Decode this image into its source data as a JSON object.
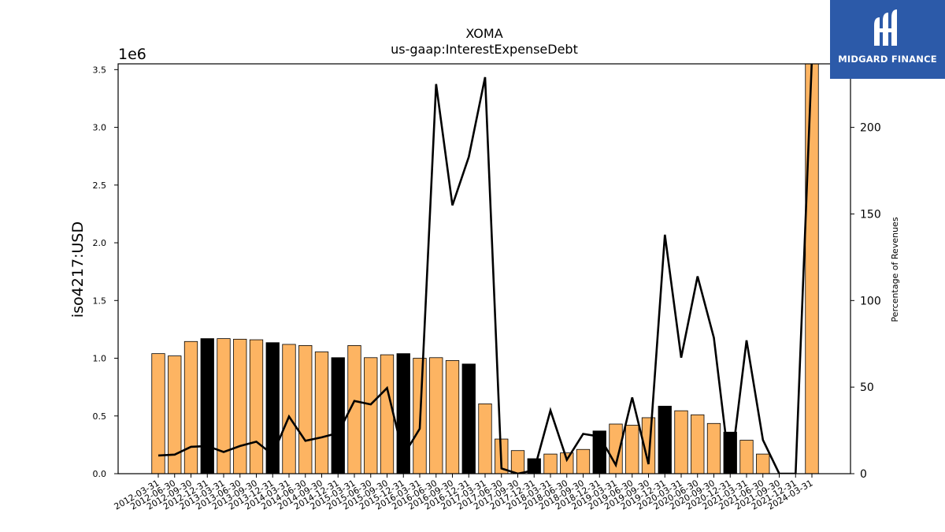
{
  "chart_data": {
    "type": "bar",
    "title": "XOMA",
    "subtitle": "us-gaap:InterestExpenseDebt",
    "ylabel": "iso4217:USD",
    "y2label": "Percentage of Revenues",
    "yscale_label": "1e6",
    "ylim": [
      0,
      3550000
    ],
    "y2lim": [
      0,
      236.7
    ],
    "yticks": [
      0,
      500000,
      1000000,
      1500000,
      2000000,
      2500000,
      3000000,
      3500000
    ],
    "yticklabels": [
      "0.0",
      "0.5",
      "1.0",
      "1.5",
      "2.0",
      "2.5",
      "3.0",
      "3.5"
    ],
    "y2ticks": [
      0,
      50,
      100,
      150,
      200
    ],
    "y2ticklabels": [
      "0",
      "50",
      "100",
      "150",
      "200"
    ],
    "grid": false,
    "colors": {
      "bar": "#fdb462",
      "bar_q4": "#000000",
      "line": "#000000"
    },
    "categories": [
      "2012-03-31",
      "2012-06-30",
      "2012-09-30",
      "2012-12-31",
      "2013-03-31",
      "2013-06-30",
      "2013-09-30",
      "2013-12-31",
      "2014-03-31",
      "2014-06-30",
      "2014-09-30",
      "2014-12-31",
      "2015-03-31",
      "2015-06-30",
      "2015-09-30",
      "2015-12-31",
      "2016-03-31",
      "2016-06-30",
      "2016-09-30",
      "2016-12-31",
      "2017-03-31",
      "2017-06-30",
      "2017-09-30",
      "2017-12-31",
      "2018-03-31",
      "2018-06-30",
      "2018-09-30",
      "2018-12-31",
      "2019-03-31",
      "2019-06-30",
      "2019-09-30",
      "2019-12-31",
      "2020-03-31",
      "2020-06-30",
      "2020-09-30",
      "2020-12-31",
      "2021-03-31",
      "2021-06-30",
      "2021-09-30",
      "2021-12-31",
      "2024-03-31"
    ],
    "highlight": [
      false,
      false,
      false,
      true,
      false,
      false,
      false,
      true,
      false,
      false,
      false,
      true,
      false,
      false,
      false,
      true,
      false,
      false,
      false,
      true,
      false,
      false,
      false,
      true,
      false,
      false,
      false,
      true,
      false,
      false,
      false,
      true,
      false,
      false,
      false,
      true,
      false,
      false,
      false,
      true,
      false
    ],
    "series": [
      {
        "type": "bar",
        "values": [
          1040000,
          1020000,
          1145000,
          1170000,
          1170000,
          1165000,
          1160000,
          1135000,
          1120000,
          1110000,
          1055000,
          1005000,
          1110000,
          1005000,
          1030000,
          1040000,
          1000000,
          1005000,
          980000,
          950000,
          605000,
          300000,
          200000,
          130000,
          170000,
          180000,
          210000,
          370000,
          430000,
          420000,
          485000,
          585000,
          545000,
          510000,
          435000,
          360000,
          290000,
          170000,
          0,
          0,
          3550000
        ]
      },
      {
        "type": "line",
        "axis": "right",
        "values": [
          10.5,
          11,
          15.5,
          16,
          12.5,
          16,
          18.5,
          11,
          33,
          19,
          21,
          23.5,
          42,
          40,
          49.5,
          10.5,
          26,
          225,
          155,
          183,
          229,
          3,
          0,
          2,
          36.5,
          8,
          23,
          21.5,
          5,
          44,
          5.5,
          138,
          67,
          114,
          78.5,
          0,
          77,
          19.5,
          0,
          0,
          240
        ]
      }
    ]
  },
  "logo": {
    "text": "MIDGARD FINANCE",
    "icon": "midgard-logo-icon"
  }
}
